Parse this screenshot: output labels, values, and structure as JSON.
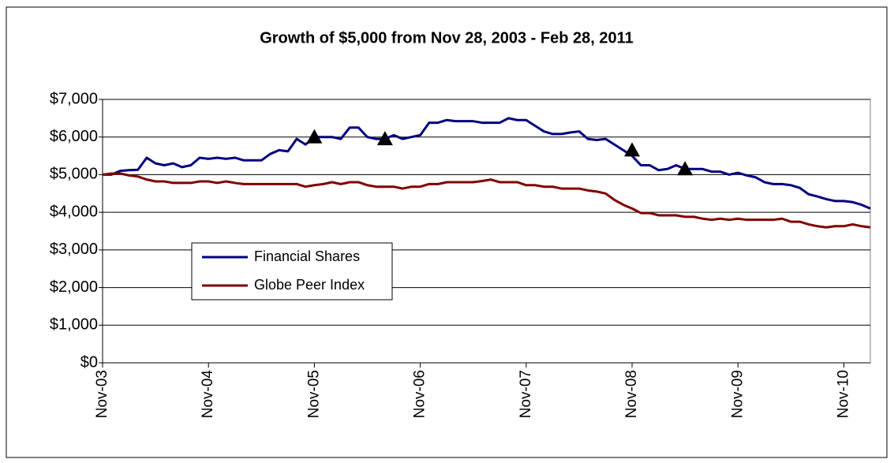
{
  "chart_data": {
    "type": "line",
    "title": "Growth of $5,000 from Nov 28, 2003 - Feb 28, 2011",
    "categories": [
      "Nov-03",
      null,
      null,
      null,
      null,
      null,
      null,
      null,
      null,
      null,
      null,
      null,
      "Nov-04",
      null,
      null,
      null,
      null,
      null,
      null,
      null,
      null,
      null,
      null,
      null,
      "Nov-05",
      null,
      null,
      null,
      null,
      null,
      null,
      null,
      null,
      null,
      null,
      null,
      "Nov-06",
      null,
      null,
      null,
      null,
      null,
      null,
      null,
      null,
      null,
      null,
      null,
      "Nov-07",
      null,
      null,
      null,
      null,
      null,
      null,
      null,
      null,
      null,
      null,
      null,
      "Nov-08",
      null,
      null,
      null,
      null,
      null,
      null,
      null,
      null,
      null,
      null,
      null,
      "Nov-09",
      null,
      null,
      null,
      null,
      null,
      null,
      null,
      null,
      null,
      null,
      null,
      "Nov-10",
      null,
      null,
      null
    ],
    "series": [
      {
        "name": "Financial Shares",
        "color": "#000080",
        "values": [
          5000,
          5000,
          5100,
          5120,
          5130,
          5450,
          5300,
          5250,
          5300,
          5200,
          5250,
          5450,
          5420,
          5450,
          5420,
          5450,
          5380,
          5380,
          5380,
          5550,
          5650,
          5620,
          5950,
          5800,
          6000,
          6000,
          6000,
          5950,
          6250,
          6250,
          6000,
          5950,
          5950,
          6050,
          5950,
          6000,
          6050,
          6380,
          6380,
          6450,
          6420,
          6420,
          6420,
          6380,
          6380,
          6380,
          6500,
          6450,
          6450,
          6300,
          6150,
          6080,
          6080,
          6120,
          6150,
          5950,
          5920,
          5950,
          5800,
          5650,
          5500,
          5250,
          5250,
          5120,
          5150,
          5250,
          5150,
          5150,
          5150,
          5080,
          5080,
          5000,
          5050,
          4980,
          4930,
          4800,
          4750,
          4750,
          4720,
          4650,
          4480,
          4420,
          4350,
          4300,
          4300,
          4270,
          4200,
          4100
        ]
      },
      {
        "name": "Globe Peer Index",
        "color": "#800000",
        "values": [
          5000,
          5030,
          5030,
          4980,
          4950,
          4870,
          4820,
          4820,
          4780,
          4780,
          4780,
          4820,
          4820,
          4780,
          4820,
          4780,
          4750,
          4750,
          4750,
          4750,
          4750,
          4750,
          4750,
          4680,
          4720,
          4750,
          4800,
          4750,
          4800,
          4800,
          4720,
          4680,
          4680,
          4680,
          4630,
          4680,
          4680,
          4750,
          4750,
          4800,
          4800,
          4800,
          4800,
          4830,
          4870,
          4800,
          4800,
          4800,
          4720,
          4720,
          4680,
          4680,
          4630,
          4630,
          4630,
          4580,
          4550,
          4500,
          4330,
          4200,
          4100,
          3980,
          3980,
          3920,
          3920,
          3920,
          3880,
          3880,
          3830,
          3800,
          3830,
          3800,
          3830,
          3800,
          3800,
          3800,
          3800,
          3830,
          3750,
          3750,
          3680,
          3630,
          3600,
          3630,
          3630,
          3680,
          3630,
          3600
        ]
      },
      {
        "marker": "triangle",
        "color": "#000000",
        "values": [
          null,
          null,
          null,
          null,
          null,
          null,
          null,
          null,
          null,
          null,
          null,
          null,
          null,
          null,
          null,
          null,
          null,
          null,
          null,
          null,
          null,
          null,
          null,
          null,
          6000,
          null,
          null,
          null,
          null,
          null,
          null,
          null,
          5950,
          null,
          null,
          null,
          null,
          null,
          null,
          null,
          null,
          null,
          null,
          null,
          null,
          null,
          null,
          null,
          null,
          null,
          null,
          null,
          null,
          null,
          null,
          null,
          null,
          null,
          null,
          null,
          5650,
          null,
          null,
          null,
          null,
          null,
          5150,
          null,
          null,
          null,
          null,
          null,
          null,
          null,
          null,
          null,
          null,
          null,
          null,
          null,
          null,
          null,
          null,
          null,
          null,
          null,
          null,
          null
        ]
      }
    ],
    "ylim": [
      0,
      7000
    ],
    "yticks": [
      {
        "value": 0,
        "label": "$0"
      },
      {
        "value": 1000,
        "label": "$1,000"
      },
      {
        "value": 2000,
        "label": "$2,000"
      },
      {
        "value": 3000,
        "label": "$3,000"
      },
      {
        "value": 4000,
        "label": "$4,000"
      },
      {
        "value": 5000,
        "label": "$5,000"
      },
      {
        "value": 6000,
        "label": "$6,000"
      },
      {
        "value": 7000,
        "label": "$7,000"
      }
    ],
    "grid": true
  }
}
